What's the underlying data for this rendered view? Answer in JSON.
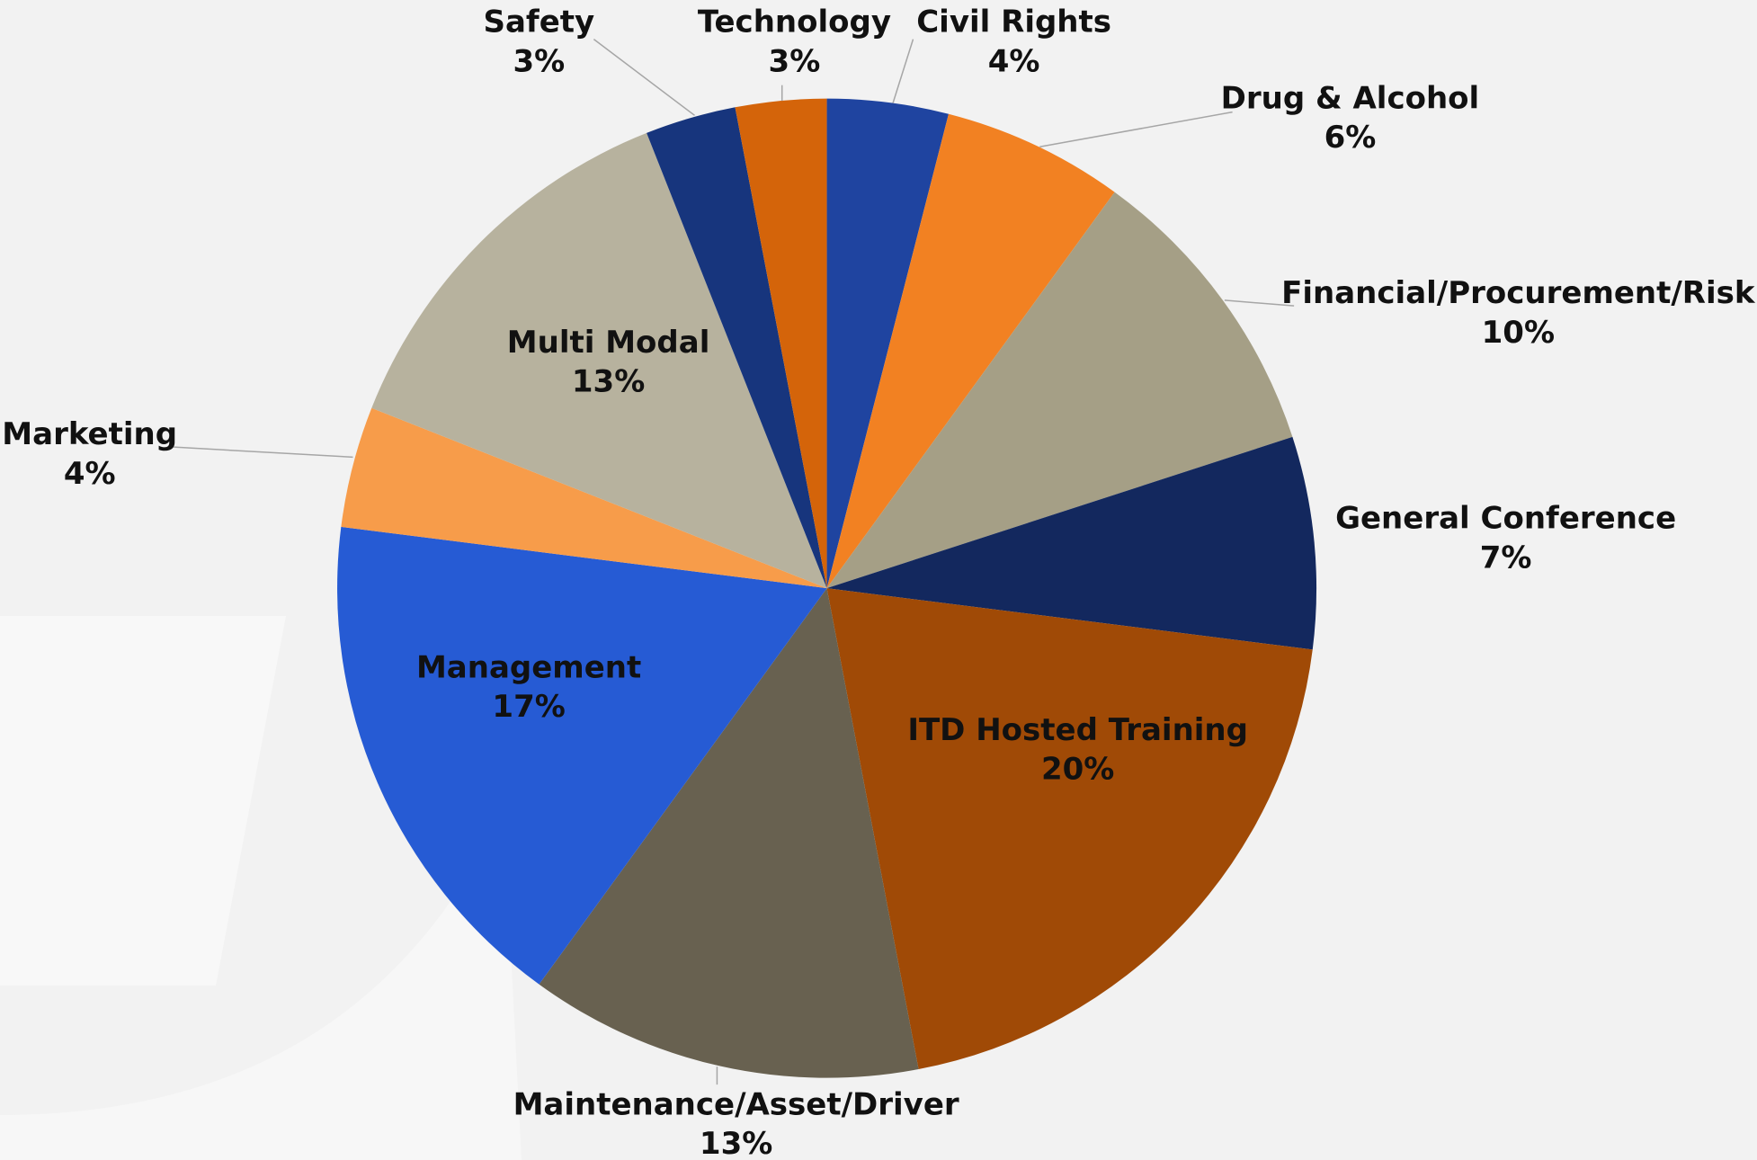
{
  "chart_data": {
    "type": "pie",
    "categories": [
      "Civil Rights",
      "Drug & Alcohol",
      "Financial/Procurement/Risk",
      "General Conference",
      "ITD Hosted Training",
      "Maintenance/Asset/Driver",
      "Management",
      "Marketing",
      "Multi Modal",
      "Safety",
      "Technology"
    ],
    "values": [
      4,
      6,
      10,
      7,
      20,
      13,
      17,
      4,
      13,
      3,
      3
    ],
    "value_labels": [
      "4%",
      "6%",
      "10%",
      "7%",
      "20%",
      "13%",
      "17%",
      "4%",
      "13%",
      "3%",
      "3%"
    ],
    "colors": [
      "#1f44a0",
      "#f28122",
      "#a59f86",
      "#13285e",
      "#a04a06",
      "#686150",
      "#265bd4",
      "#f79c4a",
      "#b7b29e",
      "#17357d",
      "#d4640a"
    ]
  }
}
